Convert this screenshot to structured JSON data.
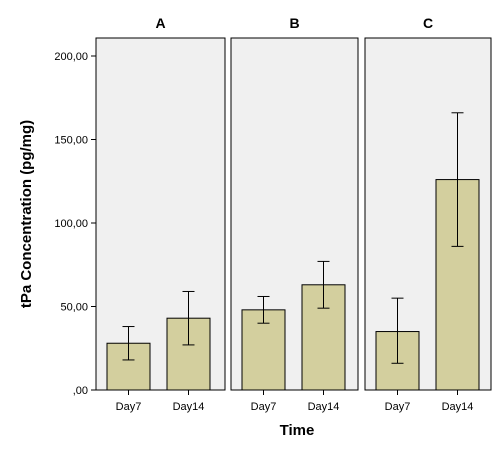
{
  "chart_data": {
    "type": "bar",
    "xlabel": "Time",
    "ylabel": "tPa Concentration (pg/mg)",
    "ylim": [
      0,
      200
    ],
    "yticks": [
      0,
      50,
      100,
      150,
      200
    ],
    "ytick_labels": [
      ",00",
      "50,00",
      "100,00",
      "150,00",
      "200,00"
    ],
    "categories": [
      "Day7",
      "Day14"
    ],
    "bar_color": "#d3cf9e",
    "panel_background": "#f0f0f0",
    "grid": false,
    "error_bars": true,
    "panels": [
      {
        "title": "A",
        "values": [
          28,
          43
        ],
        "error_low": [
          18,
          27
        ],
        "error_high": [
          38,
          59
        ]
      },
      {
        "title": "B",
        "values": [
          48,
          63
        ],
        "error_low": [
          40,
          49
        ],
        "error_high": [
          56,
          77
        ]
      },
      {
        "title": "C",
        "values": [
          35,
          126
        ],
        "error_low": [
          16,
          86
        ],
        "error_high": [
          55,
          166
        ]
      }
    ]
  }
}
